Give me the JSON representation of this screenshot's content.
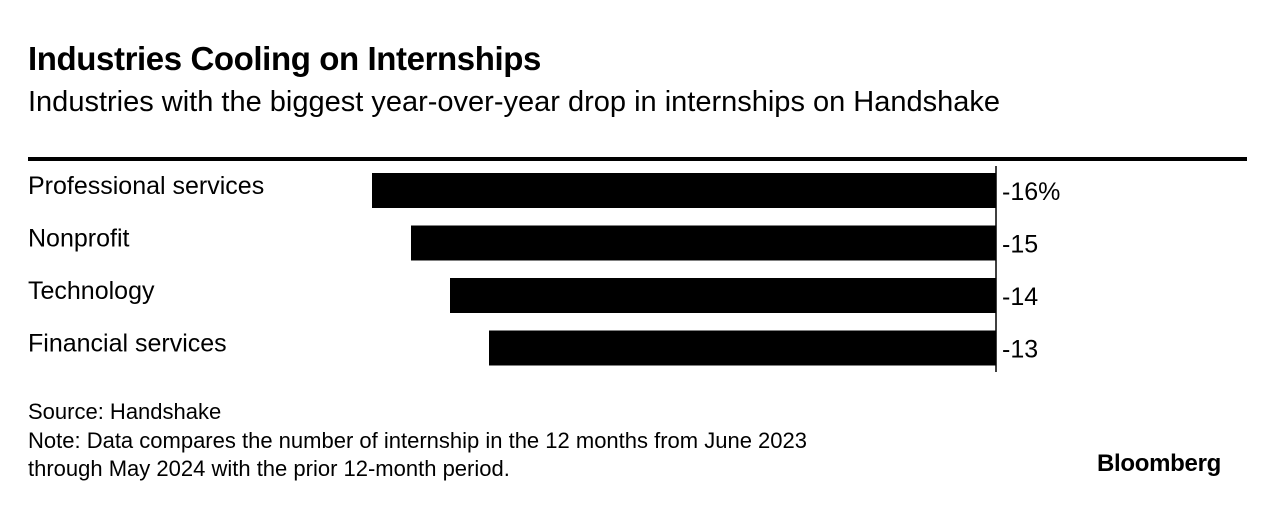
{
  "title": "Industries Cooling on Internships",
  "subtitle": "Industries with the biggest year-over-year drop in internships on Handshake",
  "chart_data": {
    "type": "bar",
    "orientation": "horizontal",
    "categories": [
      "Professional services",
      "Nonprofit",
      "Technology",
      "Financial services"
    ],
    "values": [
      -16,
      -15,
      -14,
      -13
    ],
    "value_labels": [
      "-16%",
      "-15",
      "-14",
      "-13"
    ],
    "xlim": [
      -16,
      0
    ],
    "grid": false,
    "legend": "none",
    "bar_color": "#000000"
  },
  "footer": {
    "source": "Source: Handshake",
    "note_line1": "Note: Data compares the number of internship in the 12 months from June 2023",
    "note_line2": "through May 2024 with the prior 12-month period.",
    "logo": "Bloomberg"
  }
}
